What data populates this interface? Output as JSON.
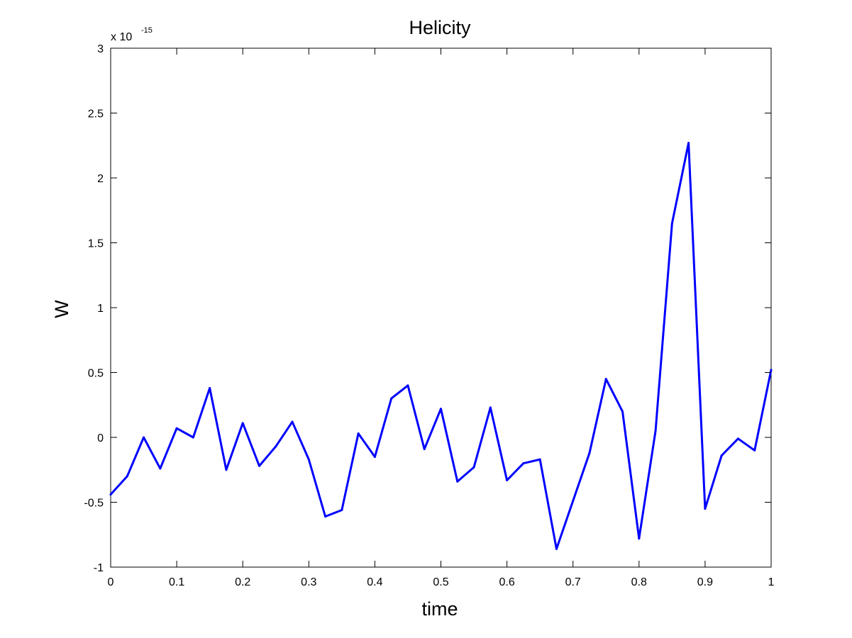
{
  "chart_data": {
    "type": "line",
    "title": "Helicity",
    "xlabel": "time",
    "ylabel": "W",
    "y_exponent_base": "x 10",
    "y_exponent_power": "-15",
    "xlim": [
      0,
      1
    ],
    "ylim": [
      -1,
      3
    ],
    "xticks": [
      0,
      0.1,
      0.2,
      0.3,
      0.4,
      0.5,
      0.6,
      0.7,
      0.8,
      0.9,
      1
    ],
    "xtick_labels": [
      "0",
      "0.1",
      "0.2",
      "0.3",
      "0.4",
      "0.5",
      "0.6",
      "0.7",
      "0.8",
      "0.9",
      "1"
    ],
    "yticks": [
      -1,
      -0.5,
      0,
      0.5,
      1,
      1.5,
      2,
      2.5,
      3
    ],
    "ytick_labels": [
      "-1",
      "-0.5",
      "0",
      "0.5",
      "1",
      "1.5",
      "2",
      "2.5",
      "3"
    ],
    "grid": false,
    "line_color": "#0000ff",
    "series": [
      {
        "x": [
          0,
          0.025,
          0.05,
          0.075,
          0.1,
          0.125,
          0.15,
          0.175,
          0.2,
          0.225,
          0.25,
          0.275,
          0.3,
          0.325,
          0.35,
          0.375,
          0.4,
          0.425,
          0.45,
          0.475,
          0.5,
          0.525,
          0.55,
          0.575,
          0.6,
          0.625,
          0.65,
          0.675,
          0.7,
          0.725,
          0.75,
          0.775,
          0.8,
          0.825,
          0.85,
          0.875,
          0.9,
          0.925,
          0.95,
          0.975,
          1
        ],
        "y": [
          -0.44,
          -0.3,
          0,
          -0.24,
          0.07,
          0,
          0.38,
          -0.25,
          0.11,
          -0.22,
          -0.07,
          0.12,
          -0.17,
          -0.61,
          -0.56,
          0.03,
          -0.15,
          0.3,
          0.4,
          -0.09,
          0.22,
          -0.34,
          -0.23,
          0.23,
          -0.33,
          -0.2,
          -0.17,
          -0.86,
          -0.49,
          -0.12,
          0.45,
          0.2,
          -0.78,
          0.05,
          1.65,
          2.27,
          -0.55,
          -0.14,
          -0.01,
          -0.1,
          0.52
        ]
      }
    ]
  }
}
